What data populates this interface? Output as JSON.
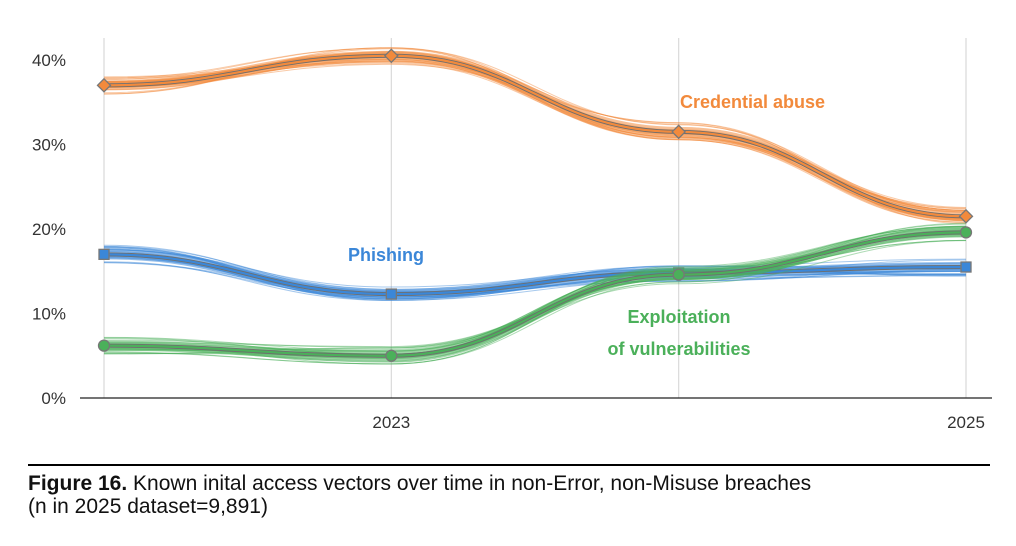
{
  "colors": {
    "credential": "#F28A3C",
    "phishing": "#3B87D8",
    "exploitation": "#4BB05A"
  },
  "caption": {
    "label": "Figure 16.",
    "text": " Known inital access vectors over time in non-Error, non-Misuse breaches",
    "line2": "(n in 2025 dataset=9,891)"
  },
  "chart_data": {
    "type": "line",
    "x": [
      2022,
      2023,
      2024,
      2025
    ],
    "x_tick_labels": [
      {
        "x": 2023,
        "label": "2023"
      },
      {
        "x": 2025,
        "label": "2025"
      }
    ],
    "y_tick_labels": [
      "0%",
      "10%",
      "20%",
      "30%",
      "40%"
    ],
    "y_ticks": [
      0,
      10,
      20,
      30,
      40
    ],
    "ylim": [
      0,
      42
    ],
    "vertical_gridlines": true,
    "series": [
      {
        "key": "credential",
        "name": "Credential abuse",
        "marker": "diamond",
        "values": [
          37,
          40.5,
          31.5,
          21.5
        ]
      },
      {
        "key": "phishing",
        "name": "Phishing",
        "marker": "square",
        "values": [
          17,
          12.3,
          14.8,
          15.5
        ]
      },
      {
        "key": "exploitation",
        "name": "Exploitation of vulnerabilities",
        "label_lines": [
          "Exploitation",
          "of vulnerabilities"
        ],
        "marker": "circle",
        "values": [
          6.2,
          5,
          14.6,
          19.6
        ]
      }
    ]
  }
}
